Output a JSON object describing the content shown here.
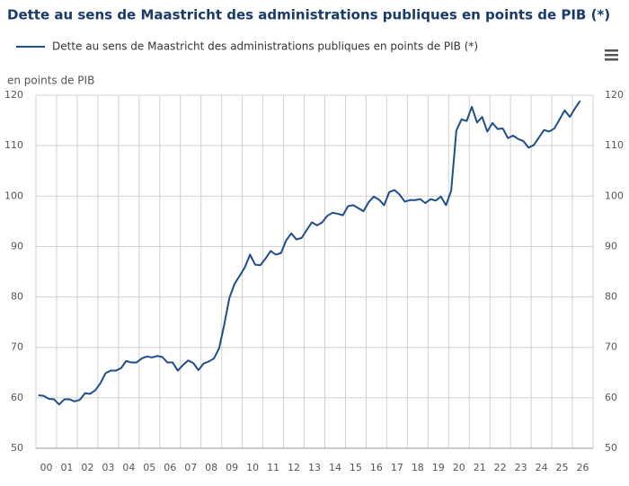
{
  "chart_data": {
    "type": "line",
    "title": "Dette au sens de Maastricht des administrations publiques en points de PIB (*)",
    "y_axis_label": "en points de PIB",
    "series": [
      {
        "name": "Dette au sens de Maastricht des administrations publiques en points de PIB (*)",
        "color": "#1f4e8c",
        "values": [
          60.5,
          60.4,
          59.8,
          59.7,
          58.7,
          59.7,
          59.7,
          59.3,
          59.6,
          60.9,
          60.8,
          61.5,
          62.9,
          64.9,
          65.4,
          65.4,
          65.9,
          67.3,
          67.0,
          67.0,
          67.8,
          68.2,
          68.0,
          68.3,
          68.1,
          67.0,
          67.0,
          65.4,
          66.5,
          67.4,
          66.9,
          65.5,
          66.8,
          67.2,
          67.8,
          69.8,
          74.5,
          79.8,
          82.6,
          84.2,
          85.9,
          88.4,
          86.4,
          86.3,
          87.6,
          89.1,
          88.4,
          88.7,
          91.2,
          92.6,
          91.4,
          91.7,
          93.3,
          94.8,
          94.2,
          94.8,
          96.1,
          96.7,
          96.5,
          96.2,
          98.0,
          98.2,
          97.6,
          97.0,
          98.8,
          99.9,
          99.3,
          98.2,
          100.8,
          101.2,
          100.3,
          98.9,
          99.2,
          99.2,
          99.4,
          98.6,
          99.4,
          99.1,
          99.9,
          98.2,
          101.1,
          113.0,
          115.2,
          114.9,
          117.7,
          114.6,
          115.7,
          112.8,
          114.5,
          113.3,
          113.4,
          111.5,
          112.0,
          111.3,
          110.9,
          109.6,
          110.1,
          111.6,
          113.1,
          112.8,
          113.4,
          115.2,
          117.0,
          115.7,
          117.4,
          118.9
        ]
      }
    ],
    "x": [
      0.125,
      0.375,
      0.625,
      0.875,
      1.125,
      1.375,
      1.625,
      1.875,
      2.125,
      2.375,
      2.625,
      2.875,
      3.125,
      3.375,
      3.625,
      3.875,
      4.125,
      4.375,
      4.625,
      4.875,
      5.125,
      5.375,
      5.625,
      5.875,
      6.125,
      6.375,
      6.625,
      6.875,
      7.125,
      7.375,
      7.625,
      7.875,
      8.125,
      8.375,
      8.625,
      8.875,
      9.125,
      9.375,
      9.625,
      9.875,
      10.125,
      10.375,
      10.625,
      10.875,
      11.125,
      11.375,
      11.625,
      11.875,
      12.125,
      12.375,
      12.625,
      12.875,
      13.125,
      13.375,
      13.625,
      13.875,
      14.125,
      14.375,
      14.625,
      14.875,
      15.125,
      15.375,
      15.625,
      15.875,
      16.125,
      16.375,
      16.625,
      16.875,
      17.125,
      17.375,
      17.625,
      17.875,
      18.125,
      18.375,
      18.625,
      18.875,
      19.125,
      19.375,
      19.625,
      19.875,
      20.125,
      20.375,
      20.625,
      20.875,
      21.125,
      21.375,
      21.625,
      21.875,
      22.125,
      22.375,
      22.625,
      22.875,
      23.125,
      23.375,
      23.625,
      23.875,
      24.125,
      24.375,
      24.625,
      24.875,
      25.125,
      25.375,
      25.625,
      25.875,
      26.125,
      26.375
    ],
    "xlim": [
      0,
      27
    ],
    "xticks": [
      {
        "value": 0.5,
        "label": "00"
      },
      {
        "value": 1.5,
        "label": "01"
      },
      {
        "value": 2.5,
        "label": "02"
      },
      {
        "value": 3.5,
        "label": "03"
      },
      {
        "value": 4.5,
        "label": "04"
      },
      {
        "value": 5.5,
        "label": "05"
      },
      {
        "value": 6.5,
        "label": "06"
      },
      {
        "value": 7.5,
        "label": "07"
      },
      {
        "value": 8.5,
        "label": "08"
      },
      {
        "value": 9.5,
        "label": "09"
      },
      {
        "value": 10.5,
        "label": "10"
      },
      {
        "value": 11.5,
        "label": "11"
      },
      {
        "value": 12.5,
        "label": "12"
      },
      {
        "value": 13.5,
        "label": "13"
      },
      {
        "value": 14.5,
        "label": "14"
      },
      {
        "value": 15.5,
        "label": "15"
      },
      {
        "value": 16.5,
        "label": "16"
      },
      {
        "value": 17.5,
        "label": "17"
      },
      {
        "value": 18.5,
        "label": "18"
      },
      {
        "value": 19.5,
        "label": "19"
      },
      {
        "value": 20.5,
        "label": "20"
      },
      {
        "value": 21.5,
        "label": "21"
      },
      {
        "value": 22.5,
        "label": "22"
      },
      {
        "value": 23.5,
        "label": "23"
      },
      {
        "value": 24.5,
        "label": "24"
      },
      {
        "value": 25.5,
        "label": "25"
      },
      {
        "value": 26.5,
        "label": "26"
      }
    ],
    "ylim": [
      50,
      120
    ],
    "yticks": [
      50,
      60,
      70,
      80,
      90,
      100,
      110,
      120
    ],
    "grid": true
  }
}
